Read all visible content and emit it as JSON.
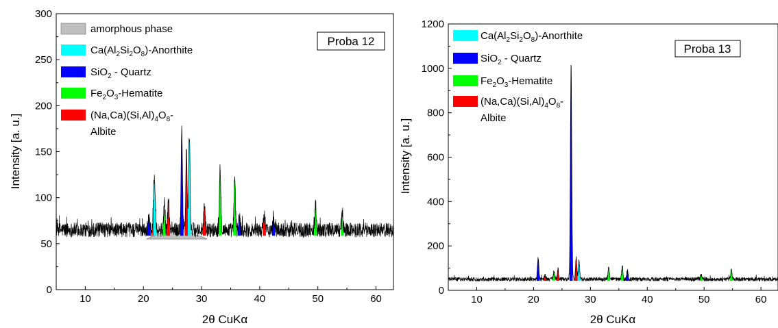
{
  "chart_data": [
    {
      "type": "line",
      "title": "Proba 12",
      "xlabel": "2θ CuKα",
      "ylabel": "Intensity [a. u.]",
      "xlim": [
        5,
        63
      ],
      "ylim": [
        0,
        300
      ],
      "xticks": [
        10,
        20,
        30,
        40,
        50,
        60
      ],
      "yticks": [
        0,
        50,
        100,
        150,
        200,
        250,
        300
      ],
      "legend": [
        {
          "key": "amorphous",
          "color": "#c0c0c0",
          "text": "amorphous phase"
        },
        {
          "key": "anorthite",
          "color": "#00ffff",
          "text": "Ca(Al2Si2O8)-Anorthite"
        },
        {
          "key": "quartz",
          "color": "#0000ff",
          "text": "SiO2 - Quartz"
        },
        {
          "key": "hematite",
          "color": "#00ff00",
          "text": "Fe2O3-Hematite"
        },
        {
          "key": "albite",
          "color": "#ff0000",
          "text": "(Na,Ca)(Si,Al)4O8-Albite"
        }
      ],
      "legend_placement": "top-left",
      "baseline": 65,
      "noise": 8,
      "amorphous_hump": {
        "x_start": 20.5,
        "x_end": 31,
        "peak_x": 25.5,
        "base": 55,
        "top": 64
      },
      "peaks": [
        {
          "x": 20.9,
          "y": 80,
          "phase": "quartz"
        },
        {
          "x": 21.8,
          "y": 108,
          "phase": "albite"
        },
        {
          "x": 22.0,
          "y": 102,
          "phase": "anorthite"
        },
        {
          "x": 23.6,
          "y": 95,
          "phase": "hematite"
        },
        {
          "x": 24.3,
          "y": 100,
          "phase": "albite"
        },
        {
          "x": 26.6,
          "y": 172,
          "phase": "quartz"
        },
        {
          "x": 27.4,
          "y": 150,
          "phase": "albite"
        },
        {
          "x": 27.9,
          "y": 168,
          "phase": "anorthite"
        },
        {
          "x": 30.5,
          "y": 90,
          "phase": "albite"
        },
        {
          "x": 33.2,
          "y": 135,
          "phase": "hematite"
        },
        {
          "x": 35.7,
          "y": 120,
          "phase": "hematite"
        },
        {
          "x": 36.5,
          "y": 80,
          "phase": "quartz"
        },
        {
          "x": 40.8,
          "y": 85,
          "phase": "albite"
        },
        {
          "x": 42.4,
          "y": 80,
          "phase": "quartz"
        },
        {
          "x": 49.6,
          "y": 95,
          "phase": "hematite"
        },
        {
          "x": 54.2,
          "y": 84,
          "phase": "hematite"
        }
      ]
    },
    {
      "type": "line",
      "title": "Proba 13",
      "xlabel": "2θ CuKα",
      "ylabel": "Intensity [a. u.]",
      "xlim": [
        5,
        63
      ],
      "ylim": [
        0,
        1200
      ],
      "xticks": [
        10,
        20,
        30,
        40,
        50,
        60
      ],
      "yticks": [
        0,
        200,
        400,
        600,
        800,
        1000,
        1200
      ],
      "legend": [
        {
          "key": "anorthite",
          "color": "#00ffff",
          "text": "Ca(Al2Si2O8)-Anorthite"
        },
        {
          "key": "quartz",
          "color": "#0000ff",
          "text": "SiO2 - Quartz"
        },
        {
          "key": "hematite",
          "color": "#00ff00",
          "text": "Fe2O3-Hematite"
        },
        {
          "key": "albite",
          "color": "#ff0000",
          "text": "(Na,Ca)(Si,Al)4O8-Albite"
        }
      ],
      "legend_placement": "top-left",
      "baseline": 50,
      "noise": 9,
      "peaks": [
        {
          "x": 20.8,
          "y": 150,
          "phase": "quartz"
        },
        {
          "x": 22.0,
          "y": 70,
          "phase": "albite"
        },
        {
          "x": 23.6,
          "y": 85,
          "phase": "hematite"
        },
        {
          "x": 24.3,
          "y": 95,
          "phase": "albite"
        },
        {
          "x": 26.6,
          "y": 1020,
          "phase": "quartz"
        },
        {
          "x": 27.5,
          "y": 145,
          "phase": "albite"
        },
        {
          "x": 28.0,
          "y": 130,
          "phase": "anorthite"
        },
        {
          "x": 33.2,
          "y": 100,
          "phase": "hematite"
        },
        {
          "x": 35.6,
          "y": 105,
          "phase": "hematite"
        },
        {
          "x": 36.5,
          "y": 90,
          "phase": "quartz"
        },
        {
          "x": 49.5,
          "y": 70,
          "phase": "hematite"
        },
        {
          "x": 54.8,
          "y": 100,
          "phase": "hematite"
        }
      ]
    }
  ]
}
